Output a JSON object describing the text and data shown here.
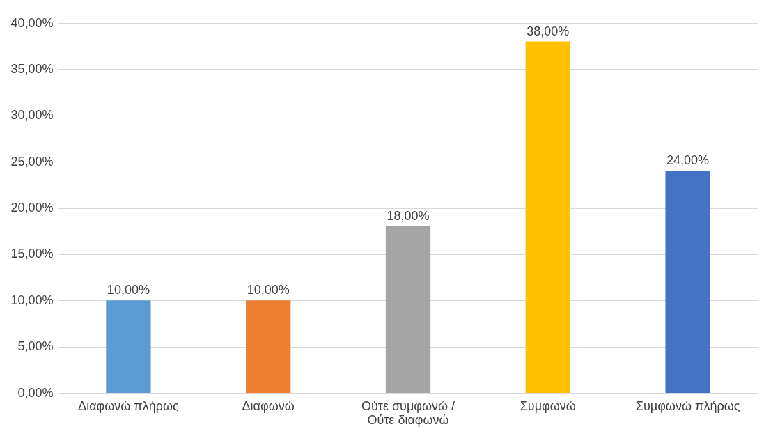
{
  "chart_data": {
    "type": "bar",
    "categories": [
      "Διαφωνώ πλήρως",
      "Διαφωνώ",
      "Ούτε συμφωνώ /\nΟύτε διαφωνώ",
      "Συμφωνώ",
      "Συμφωνώ πλήρως"
    ],
    "values": [
      10,
      10,
      18,
      38,
      24
    ],
    "colors": [
      "#5b9bd5",
      "#ed7d31",
      "#a5a5a5",
      "#ffc000",
      "#4472c4"
    ],
    "value_labels": [
      "10,00%",
      "10,00%",
      "18,00%",
      "38,00%",
      "24,00%"
    ],
    "ylim": [
      0,
      40
    ],
    "yticks": [
      {
        "value": 0,
        "label": "0,00%"
      },
      {
        "value": 5,
        "label": "5,00%"
      },
      {
        "value": 10,
        "label": "10,00%"
      },
      {
        "value": 15,
        "label": "15,00%"
      },
      {
        "value": 20,
        "label": "20,00%"
      },
      {
        "value": 25,
        "label": "25,00%"
      },
      {
        "value": 30,
        "label": "30,00%"
      },
      {
        "value": 35,
        "label": "35,00%"
      },
      {
        "value": 40,
        "label": "40,00%"
      }
    ],
    "grid": "y"
  }
}
